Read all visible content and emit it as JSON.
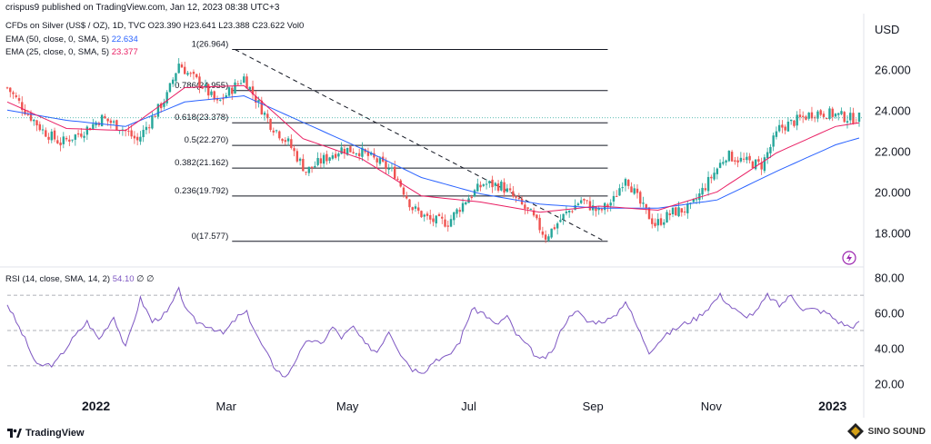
{
  "header": {
    "published": "crispus9 published on TradingView.com, Jan 12, 2023 08:38 UTC+3",
    "symbol": "CFDs on Silver (US$ / OZ), 1D, TVC",
    "ohlc": {
      "o_label": "O",
      "o": "23.390",
      "h_label": "H",
      "h": "23.641",
      "l_label": "L",
      "l": "23.388",
      "c_label": "C",
      "c": "23.622",
      "vol": "Vol0"
    },
    "ema50": {
      "label": "EMA (50, close, 0, SMA, 5)",
      "value": "22.634",
      "color": "#2962ff"
    },
    "ema25": {
      "label": "EMA (25, close, 0, SMA, 5)",
      "value": "23.377",
      "color": "#e91e63"
    }
  },
  "currency": "USD",
  "footer": {
    "logo_text": "TradingView",
    "watermark": "SINO SOUND"
  },
  "colors": {
    "up": "#26a69a",
    "down": "#ef5350",
    "rsi": "#7e57c2",
    "fib": "#131722",
    "grid": "#f0f3fa",
    "last": "#26a69a"
  },
  "chart_data": [
    {
      "type": "candlestick",
      "title": "CFDs on Silver (US$ / OZ), 1D, TVC",
      "ylabel": "USD",
      "ylim": [
        16.5,
        28.5
      ],
      "yticks": [
        "18.000",
        "20.000",
        "22.000",
        "24.000",
        "26.000"
      ],
      "xticks": [
        "2022",
        "Mar",
        "May",
        "Jul",
        "Sep",
        "Nov",
        "2023"
      ],
      "price_path": [
        [
          0,
          25.1
        ],
        [
          6,
          24.0
        ],
        [
          12,
          23.0
        ],
        [
          18,
          22.4
        ],
        [
          25,
          22.9
        ],
        [
          32,
          23.6
        ],
        [
          38,
          23.2
        ],
        [
          44,
          22.5
        ],
        [
          48,
          23.4
        ],
        [
          54,
          24.7
        ],
        [
          58,
          26.3
        ],
        [
          61,
          25.8
        ],
        [
          66,
          25.2
        ],
        [
          71,
          24.3
        ],
        [
          75,
          24.9
        ],
        [
          80,
          25.6
        ],
        [
          83,
          24.8
        ],
        [
          89,
          23.3
        ],
        [
          95,
          22.4
        ],
        [
          101,
          21.0
        ],
        [
          107,
          21.6
        ],
        [
          113,
          22.1
        ],
        [
          119,
          22.0
        ],
        [
          125,
          21.5
        ],
        [
          131,
          20.9
        ],
        [
          137,
          19.2
        ],
        [
          143,
          18.6
        ],
        [
          149,
          18.5
        ],
        [
          155,
          19.6
        ],
        [
          161,
          20.4
        ],
        [
          167,
          20.3
        ],
        [
          172,
          19.6
        ],
        [
          177,
          18.9
        ],
        [
          182,
          17.8
        ],
        [
          188,
          18.8
        ],
        [
          194,
          19.6
        ],
        [
          200,
          19.0
        ],
        [
          205,
          19.6
        ],
        [
          209,
          20.8
        ],
        [
          214,
          19.4
        ],
        [
          219,
          18.4
        ],
        [
          225,
          19.0
        ],
        [
          231,
          19.2
        ],
        [
          237,
          20.5
        ],
        [
          243,
          21.8
        ],
        [
          249,
          21.5
        ],
        [
          255,
          21.3
        ],
        [
          261,
          23.1
        ],
        [
          267,
          23.5
        ],
        [
          273,
          23.9
        ],
        [
          279,
          23.8
        ],
        [
          285,
          23.6
        ],
        [
          288,
          23.62
        ]
      ],
      "ema50_path": [
        [
          0,
          24.0
        ],
        [
          20,
          23.5
        ],
        [
          40,
          23.2
        ],
        [
          60,
          24.4
        ],
        [
          80,
          24.7
        ],
        [
          100,
          23.4
        ],
        [
          120,
          22.1
        ],
        [
          140,
          20.7
        ],
        [
          160,
          19.9
        ],
        [
          180,
          19.4
        ],
        [
          200,
          19.2
        ],
        [
          220,
          19.2
        ],
        [
          240,
          19.6
        ],
        [
          260,
          21.0
        ],
        [
          280,
          22.3
        ],
        [
          288,
          22.634
        ]
      ],
      "ema25_path": [
        [
          0,
          24.4
        ],
        [
          20,
          23.1
        ],
        [
          40,
          23.0
        ],
        [
          60,
          25.1
        ],
        [
          80,
          25.2
        ],
        [
          100,
          22.6
        ],
        [
          120,
          21.6
        ],
        [
          140,
          19.8
        ],
        [
          160,
          19.5
        ],
        [
          180,
          19.0
        ],
        [
          200,
          19.3
        ],
        [
          220,
          19.1
        ],
        [
          240,
          20.0
        ],
        [
          260,
          21.9
        ],
        [
          280,
          23.2
        ],
        [
          288,
          23.377
        ]
      ],
      "fibonacci": [
        {
          "level": "1",
          "price": 26.964
        },
        {
          "level": "0.786",
          "price": 24.955
        },
        {
          "level": "0.618",
          "price": 23.378
        },
        {
          "level": "0.5",
          "price": 22.27
        },
        {
          "level": "0.382",
          "price": 21.162
        },
        {
          "level": "0.236",
          "price": 19.792
        },
        {
          "level": "0",
          "price": 17.577
        }
      ],
      "last_price": 23.622
    },
    {
      "type": "line",
      "title": "RSI (14, close, SMA, 14, 2)",
      "legend_value": "54.10",
      "legend_extra": "∅ ∅",
      "ylim": [
        15,
        85
      ],
      "yticks": [
        "20.00",
        "40.00",
        "60.00",
        "80.00"
      ],
      "bands": [
        30,
        50,
        70
      ],
      "rsi_path": [
        [
          0,
          65
        ],
        [
          6,
          45
        ],
        [
          10,
          30
        ],
        [
          16,
          31
        ],
        [
          22,
          45
        ],
        [
          27,
          55
        ],
        [
          31,
          45
        ],
        [
          36,
          58
        ],
        [
          40,
          40
        ],
        [
          45,
          68
        ],
        [
          49,
          55
        ],
        [
          54,
          60
        ],
        [
          58,
          73
        ],
        [
          61,
          60
        ],
        [
          64,
          55
        ],
        [
          69,
          52
        ],
        [
          73,
          48
        ],
        [
          78,
          58
        ],
        [
          81,
          60
        ],
        [
          85,
          45
        ],
        [
          90,
          30
        ],
        [
          94,
          23
        ],
        [
          98,
          35
        ],
        [
          102,
          45
        ],
        [
          106,
          42
        ],
        [
          110,
          52
        ],
        [
          113,
          46
        ],
        [
          117,
          52
        ],
        [
          121,
          42
        ],
        [
          125,
          38
        ],
        [
          129,
          50
        ],
        [
          133,
          37
        ],
        [
          137,
          28
        ],
        [
          141,
          27
        ],
        [
          145,
          34
        ],
        [
          149,
          35
        ],
        [
          153,
          44
        ],
        [
          157,
          62
        ],
        [
          161,
          60
        ],
        [
          165,
          53
        ],
        [
          169,
          58
        ],
        [
          172,
          48
        ],
        [
          176,
          41
        ],
        [
          180,
          33
        ],
        [
          184,
          37
        ],
        [
          188,
          53
        ],
        [
          192,
          62
        ],
        [
          196,
          55
        ],
        [
          200,
          55
        ],
        [
          205,
          57
        ],
        [
          209,
          67
        ],
        [
          213,
          52
        ],
        [
          217,
          38
        ],
        [
          221,
          45
        ],
        [
          225,
          50
        ],
        [
          229,
          54
        ],
        [
          233,
          57
        ],
        [
          237,
          63
        ],
        [
          241,
          70
        ],
        [
          245,
          63
        ],
        [
          249,
          58
        ],
        [
          253,
          60
        ],
        [
          257,
          70
        ],
        [
          261,
          64
        ],
        [
          265,
          70
        ],
        [
          269,
          62
        ],
        [
          273,
          62
        ],
        [
          277,
          60
        ],
        [
          281,
          55
        ],
        [
          285,
          52
        ],
        [
          288,
          54.1
        ]
      ]
    }
  ]
}
